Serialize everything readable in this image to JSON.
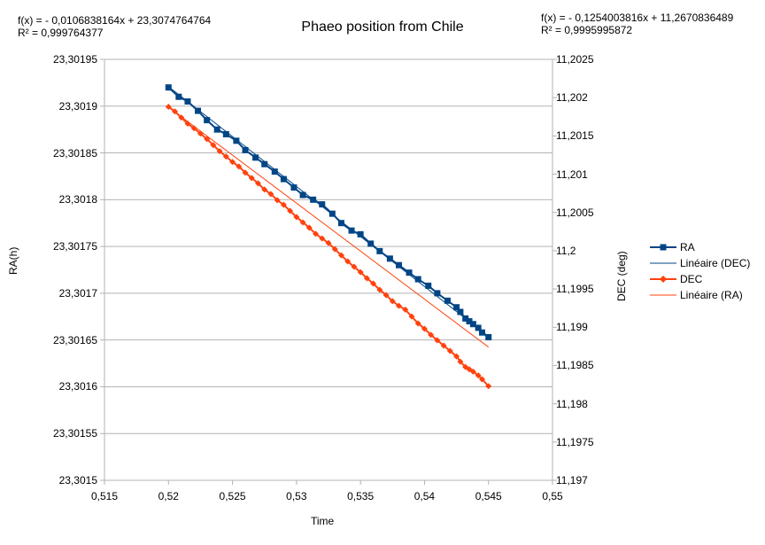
{
  "chart_data": {
    "type": "line",
    "title": "Phaeo position from Chile",
    "xlabel": "Time",
    "ylabel_left": "RA(h)",
    "ylabel_right": "DEC (deg)",
    "xlim": [
      0.515,
      0.55
    ],
    "ylim_left": [
      23.3015,
      23.30195
    ],
    "ylim_right": [
      11.197,
      11.2025
    ],
    "grid": true,
    "legend_position": "right",
    "x_ticks": [
      "0,515",
      "0,52",
      "0,525",
      "0,53",
      "0,535",
      "0,54",
      "0,545",
      "0,55"
    ],
    "y_left_ticks": [
      "23,30195",
      "23,3019",
      "23,30185",
      "23,3018",
      "23,30175",
      "23,3017",
      "23,30165",
      "23,3016",
      "23,30155",
      "23,3015"
    ],
    "y_right_ticks": [
      "11,2025",
      "11,202",
      "11,2015",
      "11,201",
      "11,2005",
      "11,2",
      "11,1995",
      "11,199",
      "11,1985",
      "11,198",
      "11,1975",
      "11,197"
    ],
    "trendline_left": {
      "equation": "f(x) =  - 0,0106838164x + 23,3074764764",
      "r2": "R² = 0,999764377",
      "slope": -0.0106838164,
      "intercept": 23.3074764764
    },
    "trendline_right": {
      "equation": "f(x) =  - 0,1254003816x + 11,2670836489",
      "r2": "R² = 0,9995995872",
      "slope": -0.1254003816,
      "intercept": 11.2670836489
    },
    "series": [
      {
        "name": "RA",
        "axis": "left",
        "color": "#004586",
        "marker": "square",
        "x": [
          0.52,
          0.5208,
          0.5215,
          0.5223,
          0.523,
          0.5238,
          0.5245,
          0.5253,
          0.526,
          0.5268,
          0.5275,
          0.5283,
          0.529,
          0.5298,
          0.5305,
          0.5313,
          0.532,
          0.5328,
          0.5335,
          0.5343,
          0.535,
          0.5358,
          0.5365,
          0.5373,
          0.538,
          0.5388,
          0.5395,
          0.5403,
          0.541,
          0.5418,
          0.5425,
          0.5428,
          0.5432,
          0.5435,
          0.5438,
          0.5442,
          0.5445,
          0.545
        ],
        "values": [
          23.30192,
          23.30191,
          23.301905,
          23.301895,
          23.301885,
          23.301875,
          23.30187,
          23.301863,
          23.301853,
          23.301845,
          23.301838,
          23.30183,
          23.301822,
          23.301813,
          23.301805,
          23.3018,
          23.301795,
          23.301785,
          23.301775,
          23.301767,
          23.301763,
          23.301753,
          23.301745,
          23.301737,
          23.30173,
          23.301722,
          23.301715,
          23.301708,
          23.3017,
          23.301692,
          23.301685,
          23.30168,
          23.301673,
          23.30167,
          23.301667,
          23.301663,
          23.301658,
          23.301653
        ]
      },
      {
        "name": "DEC",
        "axis": "right",
        "color": "#ff420e",
        "marker": "diamond",
        "x": [
          0.52,
          0.5205,
          0.521,
          0.5215,
          0.522,
          0.5225,
          0.523,
          0.5235,
          0.524,
          0.5245,
          0.525,
          0.5255,
          0.526,
          0.5265,
          0.527,
          0.5275,
          0.528,
          0.5285,
          0.529,
          0.5295,
          0.53,
          0.5305,
          0.531,
          0.5315,
          0.532,
          0.5325,
          0.533,
          0.5335,
          0.534,
          0.5345,
          0.535,
          0.5355,
          0.536,
          0.5365,
          0.537,
          0.5375,
          0.538,
          0.5385,
          0.539,
          0.5395,
          0.54,
          0.5405,
          0.541,
          0.5415,
          0.542,
          0.5425,
          0.5428,
          0.5432,
          0.5435,
          0.5438,
          0.5442,
          0.5445,
          0.545
        ],
        "values": [
          11.20188,
          11.20182,
          11.20174,
          11.20166,
          11.2016,
          11.20153,
          11.20146,
          11.20138,
          11.2013,
          11.20123,
          11.20116,
          11.2011,
          11.20102,
          11.20095,
          11.20088,
          11.2008,
          11.20074,
          11.20066,
          11.2006,
          11.20052,
          11.20044,
          11.20037,
          11.2003,
          11.20022,
          11.20016,
          11.2001,
          11.20002,
          11.19994,
          11.19986,
          11.19979,
          11.19972,
          11.19964,
          11.19957,
          11.19949,
          11.19942,
          11.19934,
          11.19928,
          11.19923,
          11.19914,
          11.19905,
          11.19898,
          11.1989,
          11.19883,
          11.19876,
          11.19869,
          11.19862,
          11.19855,
          11.19848,
          11.19845,
          11.19842,
          11.19837,
          11.19832,
          11.19823
        ]
      }
    ],
    "legend": [
      {
        "label": "RA",
        "color": "#004586",
        "marker": "square"
      },
      {
        "label": "Linéaire (DEC)",
        "color": "#004586",
        "marker": "none"
      },
      {
        "label": "DEC",
        "color": "#ff420e",
        "marker": "diamond"
      },
      {
        "label": "Linéaire (RA)",
        "color": "#ff420e",
        "marker": "none"
      }
    ]
  }
}
